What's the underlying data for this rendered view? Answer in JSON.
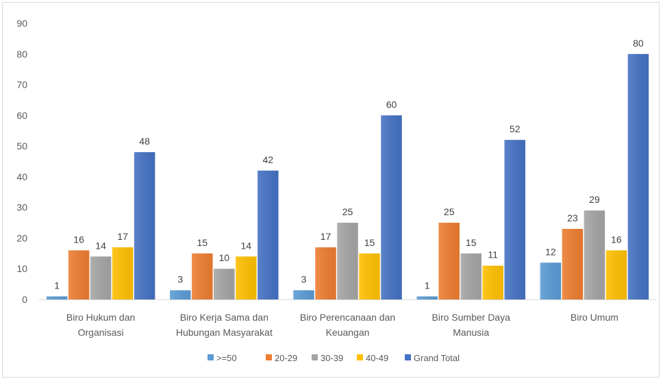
{
  "chart_data": {
    "type": "bar",
    "title": "",
    "xlabel": "",
    "ylabel": "",
    "ylim": [
      0,
      90
    ],
    "yticks": [
      0,
      10,
      20,
      30,
      40,
      50,
      60,
      70,
      80,
      90
    ],
    "grid": false,
    "legend_position": "bottom",
    "categories": [
      [
        "Biro Hukum dan",
        "Organisasi"
      ],
      [
        "Biro Kerja Sama dan",
        "Hubungan Masyarakat"
      ],
      [
        "Biro Perencanaan dan",
        "Keuangan"
      ],
      [
        "Biro Sumber Daya",
        "Manusia"
      ],
      [
        "Biro Umum"
      ]
    ],
    "series": [
      {
        "name": ">=50",
        "color": "#5b9bd5",
        "values": [
          1,
          3,
          3,
          1,
          12
        ]
      },
      {
        "name": "20-29",
        "color": "#ed7d31",
        "values": [
          16,
          15,
          17,
          25,
          23
        ]
      },
      {
        "name": "30-39",
        "color": "#a5a5a5",
        "values": [
          14,
          10,
          25,
          15,
          29
        ]
      },
      {
        "name": "40-49",
        "color": "#ffc000",
        "values": [
          17,
          14,
          15,
          11,
          16
        ]
      },
      {
        "name": "Grand Total",
        "color": "#4472c4",
        "values": [
          48,
          42,
          60,
          52,
          80
        ]
      }
    ]
  }
}
